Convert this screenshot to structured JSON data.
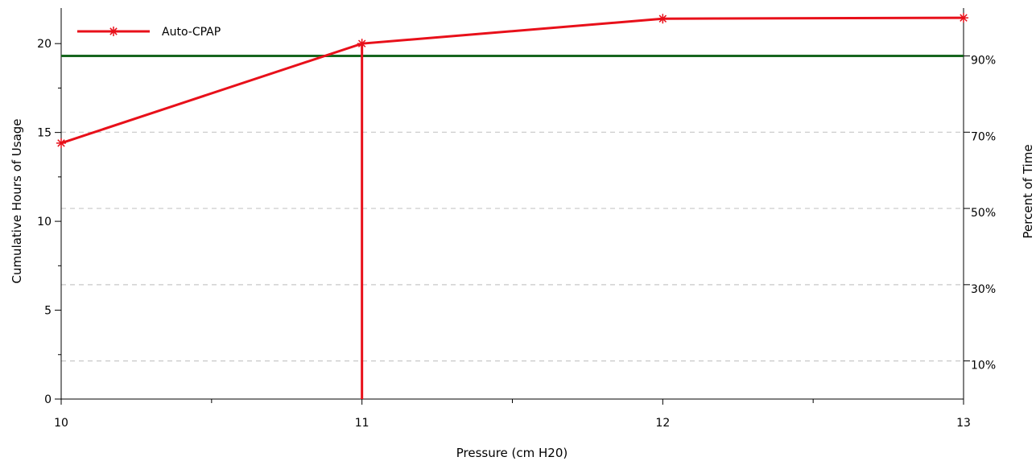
{
  "chart_data": {
    "type": "line",
    "xlabel": "Pressure (cm H20)",
    "ylabel": "Cumulative Hours of Usage",
    "y2label": "Percent of Time",
    "xlim": [
      10,
      13
    ],
    "ylim": [
      0,
      22
    ],
    "x_ticks": [
      10,
      11,
      12,
      13
    ],
    "x_tick_labels": [
      "10",
      "11",
      "12",
      "13"
    ],
    "y_ticks": [
      0,
      5,
      10,
      15,
      20
    ],
    "y_tick_labels": [
      "0",
      "5",
      "10",
      "15",
      "20"
    ],
    "y_minor_ticks": [
      2.5,
      7.5,
      12.5,
      17.5
    ],
    "y2_ticks": [
      10,
      30,
      50,
      70,
      90
    ],
    "y2_tick_labels": [
      "10%",
      "30%",
      "50%",
      "70%",
      "90%"
    ],
    "y2_max_hours": 21.45,
    "grid": "horizontal dashed at percent ticks",
    "legend": {
      "position": "top-left",
      "entries": [
        "Auto-CPAP"
      ]
    },
    "series": [
      {
        "name": "Auto-CPAP",
        "color": "#e8101a",
        "marker": "asterisk",
        "x": [
          10,
          11,
          12,
          13
        ],
        "values": [
          14.4,
          20.0,
          21.4,
          21.45
        ]
      }
    ],
    "reference_lines": {
      "horizontal_percent": 90,
      "horizontal_color": "#17661e",
      "vertical_x": 11,
      "vertical_color": "#e8101a"
    },
    "colors": {
      "grid": "#c8c8c8",
      "axis": "#000000"
    }
  }
}
